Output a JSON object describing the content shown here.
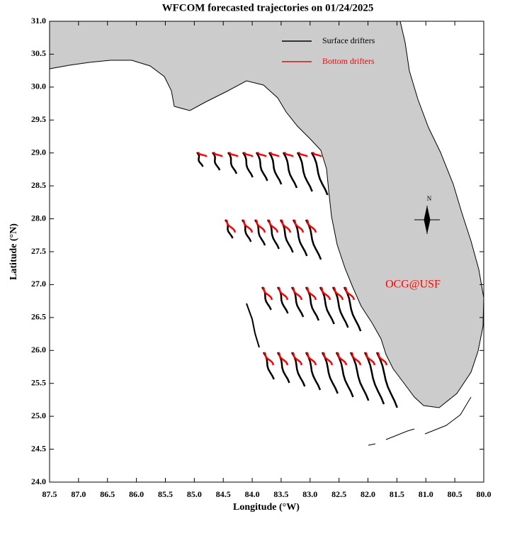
{
  "chart_data": {
    "type": "map",
    "title": "WFCOM forecasted trajectories on 01/24/2025",
    "x_label": "Longitude (°W)",
    "y_label": "Latitude (°N)",
    "xlim": [
      87.5,
      80.0
    ],
    "ylim": [
      24.0,
      31.0
    ],
    "xticks": [
      87.5,
      {
        "value": 87,
        "label": "87.0"
      },
      86.5,
      {
        "value": 86,
        "label": "86.0"
      },
      85.5,
      {
        "value": 85,
        "label": "85.0"
      },
      84.5,
      {
        "value": 84,
        "label": "84.0"
      },
      83.5,
      {
        "value": 83,
        "label": "83.0"
      },
      82.5,
      {
        "value": 82,
        "label": "82.0"
      },
      81.5,
      {
        "value": 81,
        "label": "81.0"
      },
      80.5,
      {
        "value": 80,
        "label": "80.0"
      }
    ],
    "yticks": [
      {
        "value": 24,
        "label": "24.0"
      },
      24.5,
      {
        "value": 25,
        "label": "25.0"
      },
      25.5,
      {
        "value": 26,
        "label": "26.0"
      },
      26.5,
      {
        "value": 27,
        "label": "27.0"
      },
      27.5,
      {
        "value": 28,
        "label": "28.0"
      },
      28.5,
      {
        "value": 29,
        "label": "29.0"
      },
      29.5,
      {
        "value": 30,
        "label": "30.0"
      },
      30.5,
      {
        "value": 31,
        "label": "31.0"
      }
    ],
    "series": [
      {
        "name": "Surface drifters",
        "color": "#000000"
      },
      {
        "name": "Bottom drifters",
        "color": "#ff0000"
      }
    ],
    "legend": "upper right",
    "annotation": "OCG@USF",
    "compass_label": "N"
  }
}
